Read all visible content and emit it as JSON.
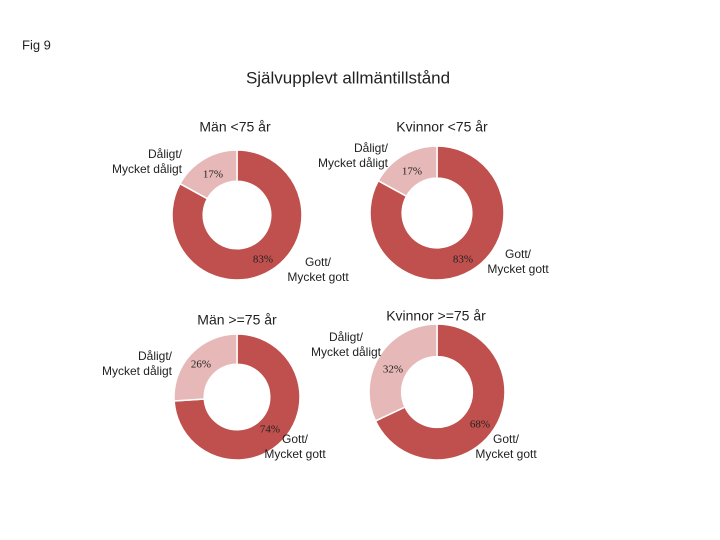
{
  "fig_label": "Fig 9",
  "title": "Självupplevt allmäntillstånd",
  "chart_data": [
    {
      "type": "donut",
      "title": "Män <75 år",
      "categories": [
        "Dåligt/\nMycket dåligt",
        "Gott/\nMycket gott"
      ],
      "values": [
        17,
        83
      ],
      "value_labels": [
        "17%",
        "83%"
      ],
      "colors": [
        "#e6b9b8",
        "#c0504d"
      ]
    },
    {
      "type": "donut",
      "title": "Kvinnor <75 år",
      "categories": [
        "Dåligt/\nMycket dåligt",
        "Gott/\nMycket gott"
      ],
      "values": [
        17,
        83
      ],
      "value_labels": [
        "17%",
        "83%"
      ],
      "colors": [
        "#e6b9b8",
        "#c0504d"
      ]
    },
    {
      "type": "donut",
      "title": "Män >=75 år",
      "categories": [
        "Dåligt/\nMycket dåligt",
        "Gott/\nMycket gott"
      ],
      "values": [
        26,
        74
      ],
      "value_labels": [
        "26%",
        "74%"
      ],
      "colors": [
        "#e6b9b8",
        "#c0504d"
      ]
    },
    {
      "type": "donut",
      "title": "Kvinnor >=75 år",
      "categories": [
        "Dåligt/\nMycket dåligt",
        "Gott/\nMycket gott"
      ],
      "values": [
        32,
        68
      ],
      "value_labels": [
        "32%",
        "68%"
      ],
      "colors": [
        "#e6b9b8",
        "#c0504d"
      ]
    }
  ]
}
